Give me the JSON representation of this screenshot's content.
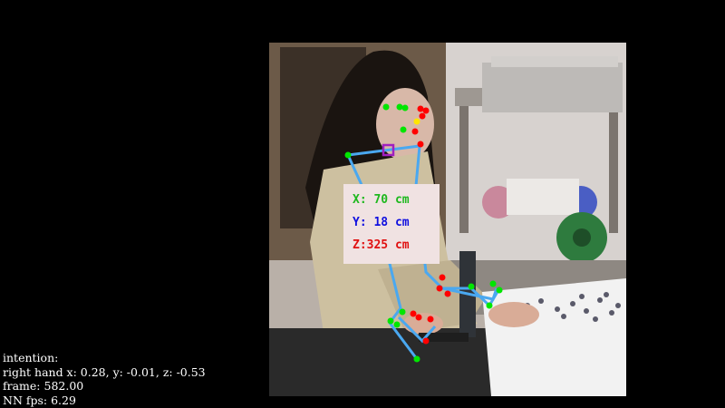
{
  "colors": {
    "x_label": "#1eb81e",
    "y_label": "#1010e0",
    "z_label": "#e01010",
    "skeleton_line": "#4aa8f0",
    "joint_green": "#00e600",
    "joint_red": "#ff0000",
    "joint_yellow": "#ffe600",
    "center_marker": "#a020c0"
  },
  "coordinates": {
    "x": "X: 70 cm",
    "y": "Y: 18 cm",
    "z": "Z:325 cm"
  },
  "info": {
    "line1": "intention:",
    "line2": "right hand x: 0.28, y: -0.01, z: -0.53",
    "line3": "frame: 582.00",
    "line4": "NN fps: 6.29"
  }
}
